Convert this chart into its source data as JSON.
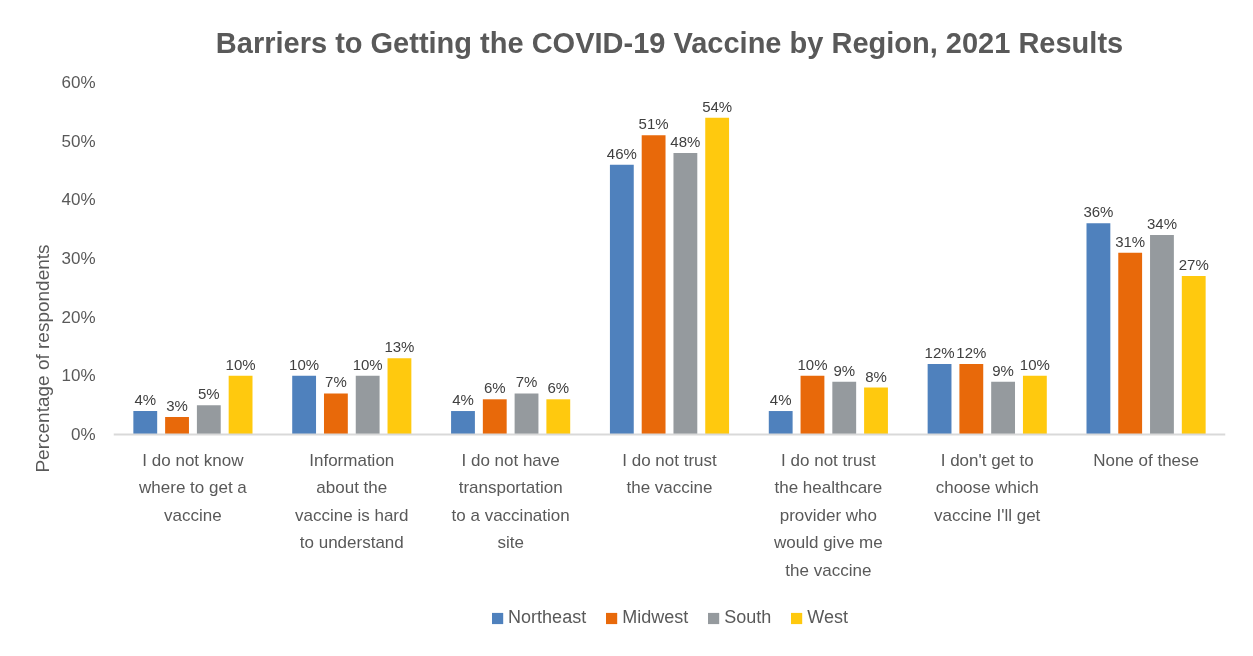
{
  "chart_data": {
    "type": "bar",
    "title": "Barriers to Getting the COVID-19 Vaccine by Region, 2021 Results",
    "ylabel": "Percentage of respondents",
    "categories": [
      "I do not know where to get a vaccine",
      "Information about the vaccine is hard to understand",
      "I do not have transportation to a vaccination site",
      "I do not trust the vaccine",
      "I do not trust the healthcare provider who would give me the vaccine",
      "I don't get to choose which vaccine I'll get",
      "None of these"
    ],
    "series": [
      {
        "name": "Northeast",
        "color": "#4f81bd",
        "values": [
          4,
          10,
          4,
          46,
          4,
          12,
          36
        ],
        "value_labels": [
          "4%",
          "10%",
          "4%",
          "46%",
          "4%",
          "12%",
          "36%"
        ]
      },
      {
        "name": "Midwest",
        "color": "#e8690a",
        "values": [
          3,
          7,
          6,
          51,
          10,
          12,
          31
        ],
        "value_labels": [
          "3%",
          "7%",
          "6%",
          "51%",
          "10%",
          "12%",
          "31%"
        ]
      },
      {
        "name": "South",
        "color": "#959a9e",
        "values": [
          5,
          10,
          7,
          48,
          9,
          9,
          34
        ],
        "value_labels": [
          "5%",
          "10%",
          "7%",
          "48%",
          "9%",
          "9%",
          "34%"
        ]
      },
      {
        "name": "West",
        "color": "#ffc90e",
        "values": [
          10,
          13,
          6,
          54,
          8,
          10,
          27
        ],
        "value_labels": [
          "10%",
          "13%",
          "6%",
          "54%",
          "8%",
          "10%",
          "27%"
        ]
      }
    ],
    "ylim": [
      0,
      60
    ],
    "yticks": [
      {
        "value": 0,
        "label": "0%"
      },
      {
        "value": 10,
        "label": "10%"
      },
      {
        "value": 20,
        "label": "20%"
      },
      {
        "value": 30,
        "label": "30%"
      },
      {
        "value": 40,
        "label": "40%"
      },
      {
        "value": 50,
        "label": "50%"
      },
      {
        "value": 60,
        "label": "60%"
      }
    ],
    "legend": "bottom"
  }
}
